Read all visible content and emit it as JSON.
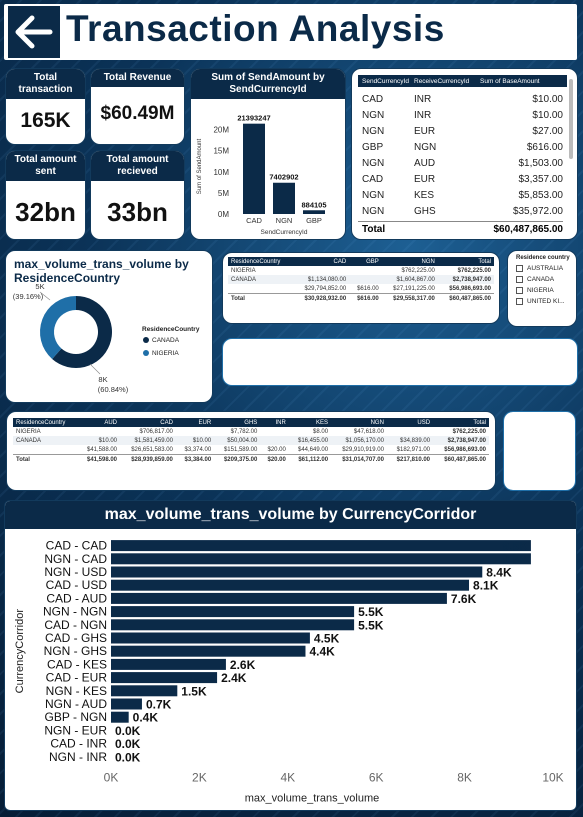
{
  "title": "Transaction Analysis",
  "kpis": {
    "total_transaction": {
      "label": "Total transaction",
      "value": "165K"
    },
    "total_revenue": {
      "label": "Total Revenue",
      "value": "$60.49M"
    },
    "total_sent": {
      "label": "Total amount sent",
      "value": "32bn"
    },
    "total_received": {
      "label": "Total amount recieved",
      "value": "33bn"
    }
  },
  "send_chart": {
    "title": "Sum of SendAmount by SendCurrencyId",
    "ylabel": "Sum of SendAmount",
    "xlabel": "SendCurrencyId",
    "yticks": [
      "20M",
      "15M",
      "10M",
      "5M",
      "0M"
    ],
    "bars": [
      {
        "cat": "CAD",
        "value": 21393247,
        "label": "21393247"
      },
      {
        "cat": "NGN",
        "value": 7402902,
        "label": "7402902"
      },
      {
        "cat": "GBP",
        "value": 884105,
        "label": "884105"
      }
    ]
  },
  "rev_table": {
    "headers": [
      "SendCurrencyId",
      "ReceiveCurrencyId",
      "Sum of BaseAmount"
    ],
    "rows": [
      [
        "CAD",
        "INR",
        "$10.00"
      ],
      [
        "NGN",
        "INR",
        "$10.00"
      ],
      [
        "NGN",
        "EUR",
        "$27.00"
      ],
      [
        "GBP",
        "NGN",
        "$616.00"
      ],
      [
        "NGN",
        "AUD",
        "$1,503.00"
      ],
      [
        "CAD",
        "EUR",
        "$3,357.00"
      ],
      [
        "NGN",
        "KES",
        "$5,853.00"
      ],
      [
        "NGN",
        "GHS",
        "$35,972.00"
      ]
    ],
    "total_label": "Total",
    "total_value": "$60,487,865.00"
  },
  "donut": {
    "title": "max_volume_trans_volume by ResidenceCountry",
    "legend_title": "ResidenceCountry",
    "slices": [
      {
        "name": "CANADA",
        "value": 8,
        "label": "8K",
        "pct": "(60.84%)",
        "color": "#0b2a48"
      },
      {
        "name": "NIGERIA",
        "value": 5,
        "label": "5K",
        "pct": "(39.16%)",
        "color": "#1f6fa8"
      }
    ]
  },
  "matrix1": {
    "headers": [
      "ResidenceCountry",
      "CAD",
      "GBP",
      "NGN",
      "Total"
    ],
    "rows": [
      [
        "NIGERIA",
        "",
        "",
        "$762,225.00",
        "$762,225.00"
      ],
      [
        "CANADA",
        "$1,134,080.00",
        "",
        "$1,604,867.00",
        "$2,738,947.00"
      ],
      [
        "",
        "$29,794,852.00",
        "$616.00",
        "$27,191,225.00",
        "$56,986,693.00"
      ]
    ],
    "total": [
      "Total",
      "$30,928,932.00",
      "$616.00",
      "$29,558,317.00",
      "$60,487,865.00"
    ]
  },
  "slicer": {
    "title": "Residence country",
    "items": [
      "AUSTRALIA",
      "CANADA",
      "NIGERIA",
      "UNITED KI..."
    ]
  },
  "matrix2": {
    "headers": [
      "ResidenceCountry",
      "AUD",
      "CAD",
      "EUR",
      "GHS",
      "INR",
      "KES",
      "NGN",
      "USD",
      "Total"
    ],
    "rows": [
      [
        "NIGERIA",
        "",
        "$706,817.00",
        "",
        "$7,782.00",
        "",
        "$8.00",
        "$47,618.00",
        "",
        "$762,225.00"
      ],
      [
        "CANADA",
        "$10.00",
        "$1,581,459.00",
        "$10.00",
        "$50,004.00",
        "",
        "$16,455.00",
        "$1,056,170.00",
        "$34,839.00",
        "$2,738,947.00"
      ],
      [
        "",
        "$41,588.00",
        "$26,651,583.00",
        "$3,374.00",
        "$151,589.00",
        "$20.00",
        "$44,649.00",
        "$29,910,919.00",
        "$182,971.00",
        "$56,986,693.00"
      ]
    ],
    "total": [
      "Total",
      "$41,598.00",
      "$28,939,859.00",
      "$3,384.00",
      "$209,375.00",
      "$20.00",
      "$61,112.00",
      "$31,014,707.00",
      "$217,810.00",
      "$60,487,865.00"
    ]
  },
  "chart_data": {
    "type": "bar",
    "orientation": "horizontal",
    "title": "max_volume_trans_volume by CurrencyCorridor",
    "xlabel": "max_volume_trans_volume",
    "ylabel": "CurrencyCorridor",
    "xlim": [
      0,
      10000
    ],
    "xticks": [
      "0K",
      "2K",
      "4K",
      "6K",
      "8K",
      "10K"
    ],
    "categories": [
      "CAD - CAD",
      "NGN - CAD",
      "NGN - USD",
      "CAD - USD",
      "CAD - AUD",
      "NGN - NGN",
      "CAD - NGN",
      "CAD - GHS",
      "NGN - GHS",
      "CAD - KES",
      "CAD - EUR",
      "NGN - KES",
      "NGN - AUD",
      "GBP - NGN",
      "NGN - EUR",
      "CAD - INR",
      "NGN - INR"
    ],
    "values": [
      9500,
      9500,
      8400,
      8100,
      7600,
      5500,
      5500,
      4500,
      4400,
      2600,
      2400,
      1500,
      700,
      400,
      0,
      0,
      0
    ],
    "labels": [
      "9.5K",
      "9.5K",
      "8.4K",
      "8.1K",
      "7.6K",
      "5.5K",
      "5.5K",
      "4.5K",
      "4.4K",
      "2.6K",
      "2.4K",
      "1.5K",
      "0.7K",
      "0.4K",
      "0.0K",
      "0.0K",
      "0.0K"
    ],
    "color": "#0b2a48"
  }
}
